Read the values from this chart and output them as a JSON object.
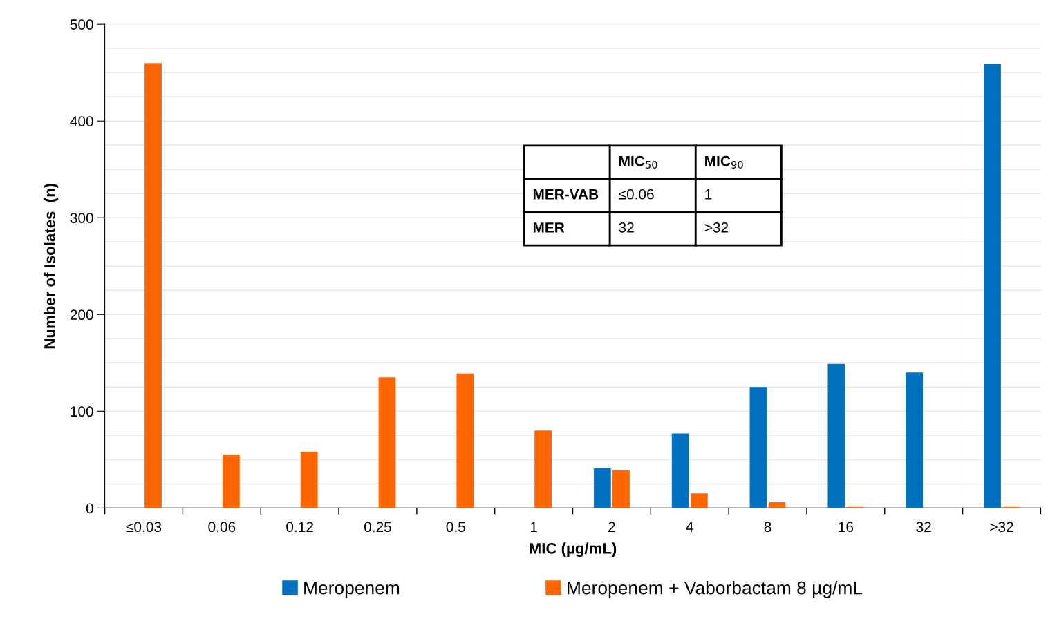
{
  "chart_data": {
    "type": "bar",
    "xlabel": "MIC (µg/mL)",
    "ylabel": "Number of Isolates  (n)",
    "categories": [
      "≤0.03",
      "0.06",
      "0.12",
      "0.25",
      "0.5",
      "1",
      "2",
      "4",
      "8",
      "16",
      "32",
      ">32"
    ],
    "series": [
      {
        "name": "Meropenem",
        "color": "#0070c0",
        "values": [
          0,
          0,
          0,
          0,
          0,
          0,
          41,
          77,
          125,
          149,
          140,
          459
        ]
      },
      {
        "name": "Meropenem + Vaborbactam 8 µg/mL",
        "color": "#ff6600",
        "values": [
          460,
          55,
          58,
          135,
          139,
          80,
          39,
          15,
          6,
          1,
          0,
          1
        ]
      }
    ],
    "ylim": [
      0,
      500
    ],
    "yticks": [
      0,
      {
        "value": 25,
        "label": null
      },
      {
        "value": 50,
        "label": null
      },
      {
        "value": 75,
        "label": null
      },
      100,
      {
        "value": 125,
        "label": null
      },
      {
        "value": 150,
        "label": null
      },
      {
        "value": 175,
        "label": null
      },
      200,
      {
        "value": 225,
        "label": null
      },
      {
        "value": 250,
        "label": null
      },
      {
        "value": 275,
        "label": null
      },
      300,
      {
        "value": 325,
        "label": null
      },
      {
        "value": 350,
        "label": null
      },
      {
        "value": 375,
        "label": null
      },
      400,
      {
        "value": 425,
        "label": null
      },
      {
        "value": 450,
        "label": null
      },
      {
        "value": 475,
        "label": null
      },
      500
    ],
    "grid": "y",
    "legend": "bottom",
    "annotations": [
      "MIC$_{50}$",
      "MIC$_{90}$",
      "MER-VAB",
      "≤0.06",
      "1",
      "MER",
      "32",
      ">32"
    ]
  }
}
